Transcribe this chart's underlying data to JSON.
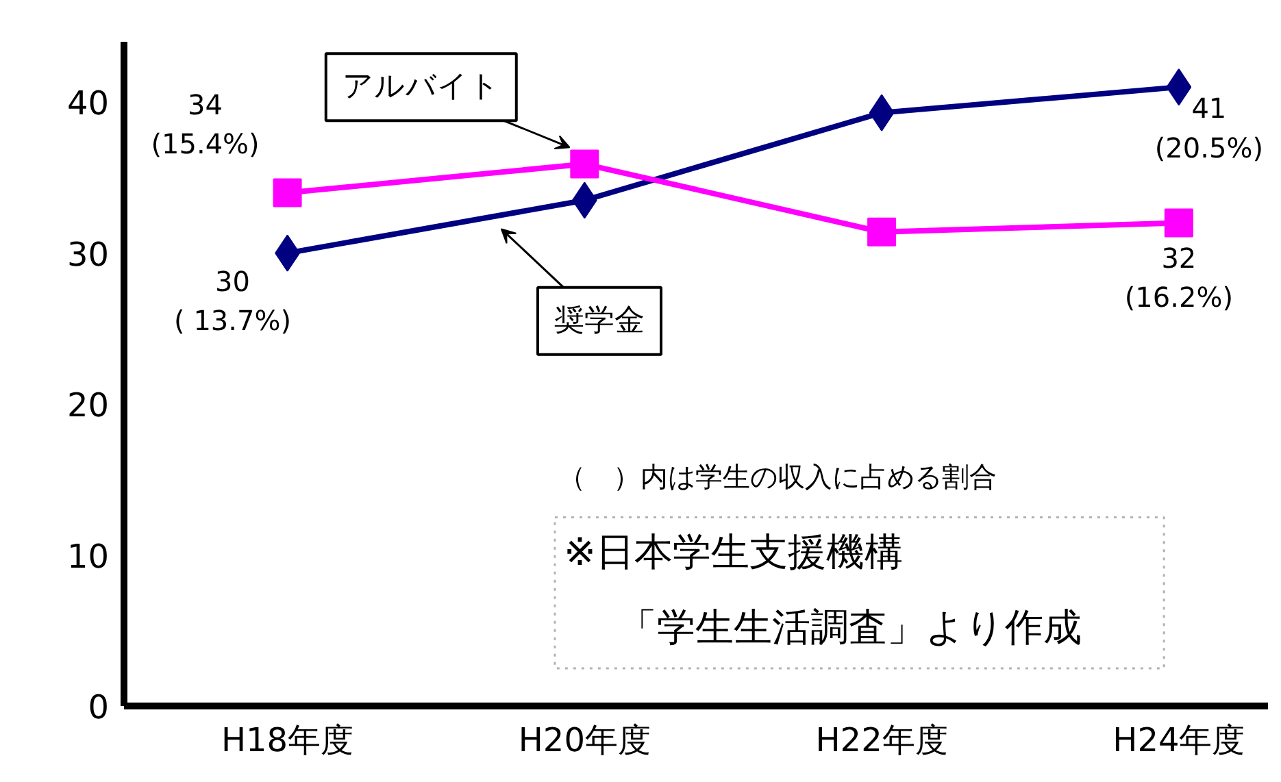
{
  "chart_data": {
    "type": "line",
    "categories": [
      "H18年度",
      "H20年度",
      "H22年度",
      "H24年度"
    ],
    "series": [
      {
        "name": "奨学金",
        "color": "#000080",
        "marker": "diamond",
        "values": [
          30,
          33.5,
          39.3,
          41
        ],
        "value_labels": [
          "30\n( 13.7%)",
          null,
          null,
          "41\n(20.5%)"
        ]
      },
      {
        "name": "アルバイト",
        "color": "#ff00ff",
        "marker": "square",
        "values": [
          34,
          35.9,
          31.4,
          32
        ],
        "value_labels": [
          "34\n(15.4%)",
          null,
          null,
          "32\n(16.2%)"
        ]
      }
    ],
    "ylim": [
      0,
      44
    ],
    "yticks": [
      0,
      10,
      20,
      30,
      40
    ],
    "grid": false,
    "annotations": [
      "（　）内は学生の収入に占める割合",
      "※日本学生支援機構",
      "「学生生活調査」より作成"
    ]
  }
}
